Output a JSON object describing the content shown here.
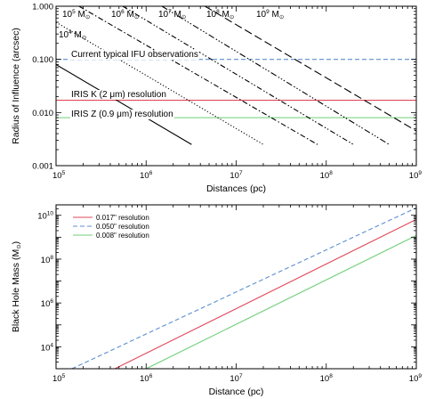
{
  "chart_data": [
    {
      "type": "line",
      "xlabel": "Distances (pc)",
      "ylabel": "Radius of Influence (arcsec)",
      "xscale": "log",
      "yscale": "log",
      "xlim": [
        100000,
        1000000000
      ],
      "ylim": [
        0.001,
        1.0
      ],
      "x_ticks": [
        {
          "mantissa": "10",
          "exp": "5"
        },
        {
          "mantissa": "10",
          "exp": "6"
        },
        {
          "mantissa": "10",
          "exp": "7"
        },
        {
          "mantissa": "10",
          "exp": "8"
        },
        {
          "mantissa": "10",
          "exp": "9"
        }
      ],
      "y_ticks": [
        "0.001",
        "0.010",
        "0.100",
        "1.000"
      ],
      "series": [
        {
          "name": "10^4 M_sun",
          "label": {
            "mantissa": "10",
            "exp": "4",
            "unit": "M",
            "unit_sub": "⊙"
          },
          "style": "solid",
          "color": "#000000",
          "x": [
            100000,
            3200000
          ],
          "y": [
            0.08,
            0.0025
          ]
        },
        {
          "name": "10^5 M_sun",
          "label": {
            "mantissa": "10",
            "exp": "5",
            "unit": "M",
            "unit_sub": "⊙"
          },
          "style": "dotted",
          "color": "#000000",
          "x": [
            100000,
            20000000
          ],
          "y": [
            0.5,
            0.0025
          ]
        },
        {
          "name": "10^6 M_sun",
          "label": {
            "mantissa": "10",
            "exp": "6",
            "unit": "M",
            "unit_sub": "⊙"
          },
          "style": "dash-dot",
          "color": "#000000",
          "x": [
            180000,
            80000000
          ],
          "y": [
            1.0,
            0.0025
          ]
        },
        {
          "name": "10^7 M_sun",
          "label": {
            "mantissa": "10",
            "exp": "7",
            "unit": "M",
            "unit_sub": "⊙"
          },
          "style": "dash-dot-dot",
          "color": "#000000",
          "x": [
            550000,
            200000000
          ],
          "y": [
            1.0,
            0.0025
          ]
        },
        {
          "name": "10^8 M_sun",
          "label": {
            "mantissa": "10",
            "exp": "8",
            "unit": "M",
            "unit_sub": "⊙"
          },
          "style": "dash-dot-dot-dot",
          "color": "#000000",
          "x": [
            1500000,
            500000000
          ],
          "y": [
            1.0,
            0.0025
          ]
        },
        {
          "name": "10^9 M_sun",
          "label": {
            "mantissa": "10",
            "exp": "9",
            "unit": "M",
            "unit_sub": "⊙"
          },
          "style": "long-dash",
          "color": "#000000",
          "x": [
            4500000,
            1000000000
          ],
          "y": [
            1.0,
            0.0045
          ]
        }
      ],
      "hlines": [
        {
          "name": "Current typical IFU observations",
          "text": "Current typical IFU observations",
          "y": 0.1,
          "style": "dashed",
          "color": "#5b8fd1"
        },
        {
          "name": "IRIS K (2 μm) resolution",
          "text": "IRIS K (2 μm) resolution",
          "y": 0.017,
          "style": "solid",
          "color": "#e0485a"
        },
        {
          "name": "IRIS Z (0.9 μm) resolution",
          "text": "IRIS Z (0.9 μm) resolution",
          "y": 0.008,
          "style": "solid",
          "color": "#6fcf7a"
        }
      ]
    },
    {
      "type": "line",
      "xlabel": "Distance (pc)",
      "ylabel": {
        "text": "Black Hole Mass (M",
        "sub": "⊙",
        "close": ")"
      },
      "xscale": "log",
      "yscale": "log",
      "xlim": [
        100000,
        1000000000
      ],
      "ylim": [
        1000,
        30000000000
      ],
      "x_ticks": [
        {
          "mantissa": "10",
          "exp": "5"
        },
        {
          "mantissa": "10",
          "exp": "6"
        },
        {
          "mantissa": "10",
          "exp": "7"
        },
        {
          "mantissa": "10",
          "exp": "8"
        },
        {
          "mantissa": "10",
          "exp": "9"
        }
      ],
      "y_ticks": [
        {
          "value": 10000,
          "mantissa": "10",
          "exp": "4"
        },
        {
          "value": 1000000,
          "mantissa": "10",
          "exp": "6"
        },
        {
          "value": 100000000,
          "mantissa": "10",
          "exp": "8"
        },
        {
          "value": 10000000000,
          "mantissa": "10",
          "exp": "10"
        }
      ],
      "legend": "top-left",
      "series": [
        {
          "name": "0.017\" resolution",
          "style": "solid",
          "color": "#e0485a",
          "x": [
            450000,
            1000000000
          ],
          "y": [
            1000,
            6500000000
          ]
        },
        {
          "name": "0.050\" resolution",
          "style": "dashed",
          "color": "#5b8fd1",
          "x": [
            150000,
            1000000000
          ],
          "y": [
            1000,
            22000000000
          ]
        },
        {
          "name": "0.008\" resolution",
          "style": "solid",
          "color": "#6fcf7a",
          "x": [
            1000000,
            1000000000
          ],
          "y": [
            1000,
            1200000000
          ]
        }
      ]
    }
  ]
}
